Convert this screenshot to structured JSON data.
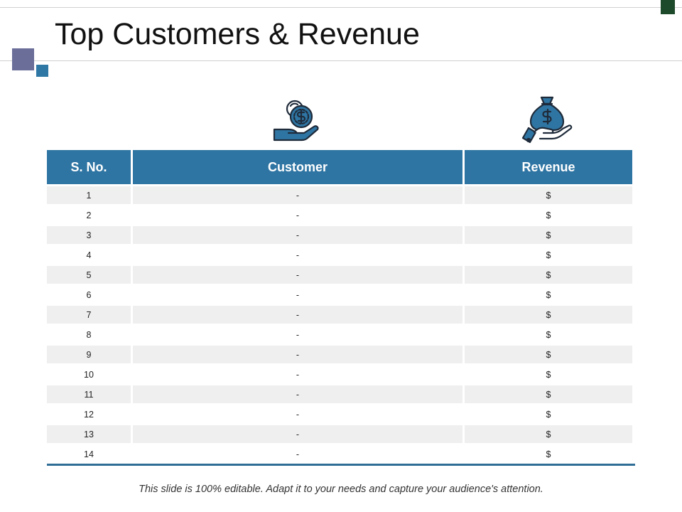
{
  "slide": {
    "title": "Top Customers & Revenue",
    "footer": "This slide is 100% editable. Adapt it to your needs and capture your audience's attention."
  },
  "colors": {
    "accent_blue": "#2f75a3",
    "accent_purple": "#6a6e99",
    "accent_green": "#1d4a2a",
    "row_stripe": "#efefef"
  },
  "icons": {
    "left": "hand-coin-icon",
    "right": "hand-money-bag-icon"
  },
  "table": {
    "headers": [
      "S. No.",
      "Customer",
      "Revenue"
    ],
    "rows": [
      {
        "no": "1",
        "customer": "-",
        "revenue": "$"
      },
      {
        "no": "2",
        "customer": "-",
        "revenue": "$"
      },
      {
        "no": "3",
        "customer": "-",
        "revenue": "$"
      },
      {
        "no": "4",
        "customer": "-",
        "revenue": "$"
      },
      {
        "no": "5",
        "customer": "-",
        "revenue": "$"
      },
      {
        "no": "6",
        "customer": "-",
        "revenue": "$"
      },
      {
        "no": "7",
        "customer": "-",
        "revenue": "$"
      },
      {
        "no": "8",
        "customer": "-",
        "revenue": "$"
      },
      {
        "no": "9",
        "customer": "-",
        "revenue": "$"
      },
      {
        "no": "10",
        "customer": "-",
        "revenue": "$"
      },
      {
        "no": "11",
        "customer": "-",
        "revenue": "$"
      },
      {
        "no": "12",
        "customer": "-",
        "revenue": "$"
      },
      {
        "no": "13",
        "customer": "-",
        "revenue": "$"
      },
      {
        "no": "14",
        "customer": "-",
        "revenue": "$"
      }
    ]
  }
}
